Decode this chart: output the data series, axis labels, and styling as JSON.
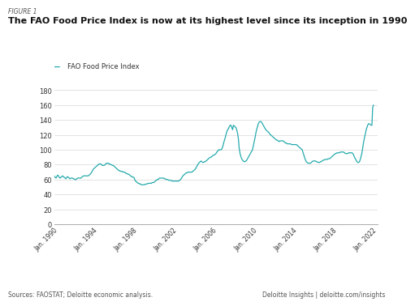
{
  "title": "The FAO Food Price Index is now at its highest level since its inception in 1990",
  "figure_label": "FIGURE 1",
  "legend_label": "FAO Food Price Index",
  "source_text": "Sources: FAOSTAT; Deloitte economic analysis.",
  "branding_text": "Deloitte Insights | deloitte.com/insights",
  "line_color": "#26AAAD",
  "background_color": "#ffffff",
  "plot_bg_color": "#ffffff",
  "grid_color": "#d8d8d8",
  "yticks": [
    0,
    20,
    40,
    60,
    80,
    100,
    120,
    140,
    160,
    180
  ],
  "xtick_labels": [
    "Jan. 1990",
    "Jan. 1994",
    "Jan. 1998",
    "Jan. 2002",
    "Jan. 2006",
    "Jan. 2010",
    "Jan. 2014",
    "Jan. 2018",
    "Jan. 2022"
  ],
  "xtick_years": [
    1990,
    1994,
    1998,
    2002,
    2006,
    2010,
    2014,
    2018,
    2022
  ],
  "ylim": [
    0,
    190
  ],
  "xlim": [
    1990,
    2022.5
  ],
  "years": [
    1990.0,
    1990.08,
    1990.17,
    1990.25,
    1990.33,
    1990.42,
    1990.5,
    1990.58,
    1990.67,
    1990.75,
    1990.83,
    1990.92,
    1991.0,
    1991.08,
    1991.17,
    1991.25,
    1991.33,
    1991.42,
    1991.5,
    1991.58,
    1991.67,
    1991.75,
    1991.83,
    1991.92,
    1992.0,
    1992.08,
    1992.17,
    1992.25,
    1992.33,
    1992.42,
    1992.5,
    1992.58,
    1992.67,
    1992.75,
    1992.83,
    1992.92,
    1993.0,
    1993.08,
    1993.17,
    1993.25,
    1993.33,
    1993.42,
    1993.5,
    1993.58,
    1993.67,
    1993.75,
    1993.83,
    1993.92,
    1994.0,
    1994.08,
    1994.17,
    1994.25,
    1994.33,
    1994.42,
    1994.5,
    1994.58,
    1994.67,
    1994.75,
    1994.83,
    1994.92,
    1995.0,
    1995.08,
    1995.17,
    1995.25,
    1995.33,
    1995.42,
    1995.5,
    1995.58,
    1995.67,
    1995.75,
    1995.83,
    1995.92,
    1996.0,
    1996.08,
    1996.17,
    1996.25,
    1996.33,
    1996.42,
    1996.5,
    1996.58,
    1996.67,
    1996.75,
    1996.83,
    1996.92,
    1997.0,
    1997.08,
    1997.17,
    1997.25,
    1997.33,
    1997.42,
    1997.5,
    1997.58,
    1997.67,
    1997.75,
    1997.83,
    1997.92,
    1998.0,
    1998.08,
    1998.17,
    1998.25,
    1998.33,
    1998.42,
    1998.5,
    1998.58,
    1998.67,
    1998.75,
    1998.83,
    1998.92,
    1999.0,
    1999.08,
    1999.17,
    1999.25,
    1999.33,
    1999.42,
    1999.5,
    1999.58,
    1999.67,
    1999.75,
    1999.83,
    1999.92,
    2000.0,
    2000.08,
    2000.17,
    2000.25,
    2000.33,
    2000.42,
    2000.5,
    2000.58,
    2000.67,
    2000.75,
    2000.83,
    2000.92,
    2001.0,
    2001.08,
    2001.17,
    2001.25,
    2001.33,
    2001.42,
    2001.5,
    2001.58,
    2001.67,
    2001.75,
    2001.83,
    2001.92,
    2002.0,
    2002.08,
    2002.17,
    2002.25,
    2002.33,
    2002.42,
    2002.5,
    2002.58,
    2002.67,
    2002.75,
    2002.83,
    2002.92,
    2003.0,
    2003.08,
    2003.17,
    2003.25,
    2003.33,
    2003.42,
    2003.5,
    2003.58,
    2003.67,
    2003.75,
    2003.83,
    2003.92,
    2004.0,
    2004.08,
    2004.17,
    2004.25,
    2004.33,
    2004.42,
    2004.5,
    2004.58,
    2004.67,
    2004.75,
    2004.83,
    2004.92,
    2005.0,
    2005.08,
    2005.17,
    2005.25,
    2005.33,
    2005.42,
    2005.5,
    2005.58,
    2005.67,
    2005.75,
    2005.83,
    2005.92,
    2006.0,
    2006.08,
    2006.17,
    2006.25,
    2006.33,
    2006.42,
    2006.5,
    2006.58,
    2006.67,
    2006.75,
    2006.83,
    2006.92,
    2007.0,
    2007.08,
    2007.17,
    2007.25,
    2007.33,
    2007.42,
    2007.5,
    2007.58,
    2007.67,
    2007.75,
    2007.83,
    2007.92,
    2008.0,
    2008.08,
    2008.17,
    2008.25,
    2008.33,
    2008.42,
    2008.5,
    2008.58,
    2008.67,
    2008.75,
    2008.83,
    2008.92,
    2009.0,
    2009.08,
    2009.17,
    2009.25,
    2009.33,
    2009.42,
    2009.5,
    2009.58,
    2009.67,
    2009.75,
    2009.83,
    2009.92,
    2010.0,
    2010.08,
    2010.17,
    2010.25,
    2010.33,
    2010.42,
    2010.5,
    2010.58,
    2010.67,
    2010.75,
    2010.83,
    2010.92,
    2011.0,
    2011.08,
    2011.17,
    2011.25,
    2011.33,
    2011.42,
    2011.5,
    2011.58,
    2011.67,
    2011.75,
    2011.83,
    2011.92,
    2012.0,
    2012.08,
    2012.17,
    2012.25,
    2012.33,
    2012.42,
    2012.5,
    2012.58,
    2012.67,
    2012.75,
    2012.83,
    2012.92,
    2013.0,
    2013.08,
    2013.17,
    2013.25,
    2013.33,
    2013.42,
    2013.5,
    2013.58,
    2013.67,
    2013.75,
    2013.83,
    2013.92,
    2014.0,
    2014.08,
    2014.17,
    2014.25,
    2014.33,
    2014.42,
    2014.5,
    2014.58,
    2014.67,
    2014.75,
    2014.83,
    2014.92,
    2015.0,
    2015.08,
    2015.17,
    2015.25,
    2015.33,
    2015.42,
    2015.5,
    2015.58,
    2015.67,
    2015.75,
    2015.83,
    2015.92,
    2016.0,
    2016.08,
    2016.17,
    2016.25,
    2016.33,
    2016.42,
    2016.5,
    2016.58,
    2016.67,
    2016.75,
    2016.83,
    2016.92,
    2017.0,
    2017.08,
    2017.17,
    2017.25,
    2017.33,
    2017.42,
    2017.5,
    2017.58,
    2017.67,
    2017.75,
    2017.83,
    2017.92,
    2018.0,
    2018.08,
    2018.17,
    2018.25,
    2018.33,
    2018.42,
    2018.5,
    2018.58,
    2018.67,
    2018.75,
    2018.83,
    2018.92,
    2019.0,
    2019.08,
    2019.17,
    2019.25,
    2019.33,
    2019.42,
    2019.5,
    2019.58,
    2019.67,
    2019.75,
    2019.83,
    2019.92,
    2020.0,
    2020.08,
    2020.17,
    2020.25,
    2020.33,
    2020.42,
    2020.5,
    2020.58,
    2020.67,
    2020.75,
    2020.83,
    2020.92,
    2021.0,
    2021.08,
    2021.17,
    2021.25,
    2021.33,
    2021.42,
    2021.5,
    2021.58,
    2021.67,
    2021.75,
    2021.83,
    2021.92,
    2022.0,
    2022.08
  ],
  "values": [
    65,
    63,
    62,
    64,
    66,
    65,
    63,
    62,
    63,
    64,
    65,
    64,
    63,
    62,
    61,
    63,
    64,
    63,
    62,
    61,
    62,
    62,
    62,
    61,
    61,
    60,
    60,
    61,
    62,
    62,
    62,
    62,
    62,
    63,
    64,
    65,
    65,
    65,
    65,
    65,
    65,
    65,
    66,
    67,
    68,
    70,
    72,
    74,
    75,
    76,
    77,
    78,
    79,
    80,
    81,
    81,
    81,
    80,
    79,
    79,
    79,
    80,
    81,
    82,
    82,
    82,
    81,
    81,
    80,
    80,
    79,
    79,
    78,
    77,
    76,
    75,
    74,
    73,
    72,
    72,
    71,
    71,
    71,
    70,
    70,
    70,
    69,
    68,
    68,
    67,
    67,
    66,
    65,
    64,
    64,
    63,
    63,
    60,
    58,
    57,
    56,
    55,
    55,
    54,
    54,
    53,
    53,
    53,
    53,
    53,
    54,
    54,
    54,
    55,
    55,
    55,
    55,
    55,
    56,
    56,
    56,
    57,
    58,
    59,
    60,
    60,
    61,
    62,
    62,
    62,
    62,
    62,
    62,
    61,
    61,
    60,
    60,
    60,
    59,
    59,
    59,
    59,
    58,
    58,
    58,
    58,
    58,
    58,
    58,
    58,
    58,
    59,
    60,
    61,
    63,
    65,
    66,
    67,
    68,
    69,
    69,
    70,
    70,
    70,
    70,
    70,
    70,
    71,
    72,
    73,
    74,
    76,
    78,
    80,
    82,
    83,
    84,
    85,
    84,
    83,
    83,
    84,
    84,
    85,
    86,
    87,
    88,
    89,
    90,
    90,
    91,
    92,
    93,
    93,
    94,
    95,
    97,
    98,
    100,
    100,
    100,
    100,
    101,
    104,
    108,
    112,
    116,
    120,
    124,
    127,
    128,
    131,
    133,
    133,
    130,
    127,
    133,
    132,
    131,
    130,
    127,
    122,
    115,
    102,
    95,
    91,
    88,
    86,
    85,
    84,
    84,
    85,
    86,
    88,
    90,
    92,
    94,
    96,
    98,
    100,
    105,
    110,
    116,
    122,
    127,
    131,
    135,
    137,
    138,
    138,
    137,
    135,
    133,
    131,
    129,
    127,
    126,
    125,
    124,
    123,
    121,
    120,
    119,
    118,
    117,
    116,
    115,
    114,
    113,
    113,
    112,
    111,
    112,
    112,
    112,
    112,
    112,
    111,
    110,
    109,
    109,
    108,
    108,
    108,
    108,
    108,
    107,
    107,
    107,
    107,
    107,
    107,
    107,
    106,
    105,
    104,
    103,
    102,
    101,
    100,
    96,
    93,
    89,
    86,
    84,
    83,
    82,
    82,
    82,
    82,
    83,
    84,
    85,
    85,
    85,
    85,
    84,
    84,
    83,
    83,
    83,
    84,
    84,
    85,
    86,
    86,
    87,
    87,
    87,
    87,
    88,
    88,
    88,
    89,
    90,
    91,
    92,
    93,
    94,
    95,
    95,
    96,
    96,
    96,
    96,
    97,
    97,
    97,
    97,
    97,
    96,
    95,
    95,
    95,
    95,
    96,
    96,
    96,
    96,
    96,
    95,
    93,
    90,
    88,
    86,
    84,
    83,
    83,
    84,
    87,
    91,
    96,
    103,
    110,
    116,
    121,
    126,
    130,
    133,
    135,
    135,
    134,
    133,
    133,
    157,
    160
  ]
}
